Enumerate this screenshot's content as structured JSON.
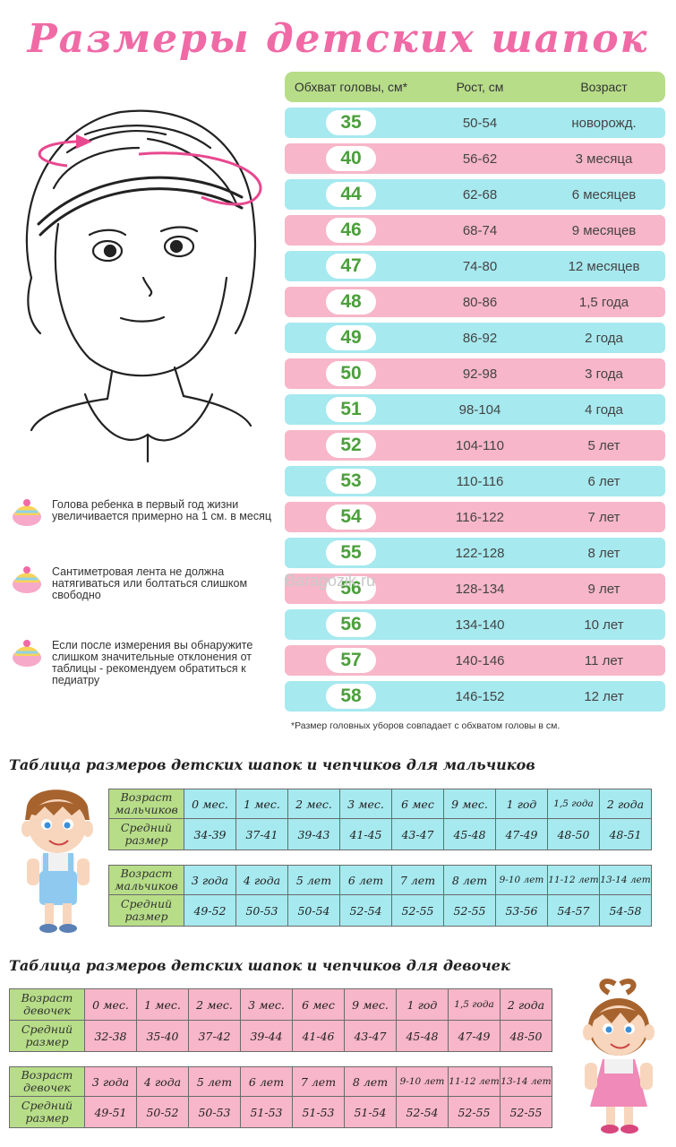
{
  "title": "Размеры детских шапок",
  "main_table": {
    "headers": {
      "head": "Обхват головы, см*",
      "height": "Рост, см",
      "age": "Возраст"
    },
    "rows": [
      {
        "size": "35",
        "height": "50-54",
        "age": "новорожд."
      },
      {
        "size": "40",
        "height": "56-62",
        "age": "3 месяца"
      },
      {
        "size": "44",
        "height": "62-68",
        "age": "6 месяцев"
      },
      {
        "size": "46",
        "height": "68-74",
        "age": "9 месяцев"
      },
      {
        "size": "47",
        "height": "74-80",
        "age": "12 месяцев"
      },
      {
        "size": "48",
        "height": "80-86",
        "age": "1,5 года"
      },
      {
        "size": "49",
        "height": "86-92",
        "age": "2 года"
      },
      {
        "size": "50",
        "height": "92-98",
        "age": "3 года"
      },
      {
        "size": "51",
        "height": "98-104",
        "age": "4 года"
      },
      {
        "size": "52",
        "height": "104-110",
        "age": "5 лет"
      },
      {
        "size": "53",
        "height": "110-116",
        "age": "6 лет"
      },
      {
        "size": "54",
        "height": "116-122",
        "age": "7 лет"
      },
      {
        "size": "55",
        "height": "122-128",
        "age": "8 лет"
      },
      {
        "size": "56",
        "height": "128-134",
        "age": "9 лет"
      },
      {
        "size": "56",
        "height": "134-140",
        "age": "10 лет"
      },
      {
        "size": "57",
        "height": "140-146",
        "age": "11 лет"
      },
      {
        "size": "58",
        "height": "146-152",
        "age": "12 лет"
      }
    ],
    "footnote": "*Размер головных уборов совпадает с обхватом головы в см."
  },
  "watermark": "Baragozik.ru",
  "tips": [
    "Голова ребенка в первый год жизни увеличивается примерно на 1 см. в месяц",
    "Сантиметровая лента не должна натягиваться или болтаться слишком свободно",
    "Если после измерения вы обнаружите слишком значительные отклонения от таблицы - рекомендуем обратиться к педиатру"
  ],
  "boys": {
    "title": "Таблица размеров детских шапок и чепчиков для мальчиков",
    "label_age": "Возраст мальчиков",
    "label_size": "Средний размер",
    "row1_ages": [
      "0 мес.",
      "1 мес.",
      "2 мес.",
      "3 мес.",
      "6 мес",
      "9 мес.",
      "1 год",
      "1,5 года",
      "2 года"
    ],
    "row1_sizes": [
      "34-39",
      "37-41",
      "39-43",
      "41-45",
      "43-47",
      "45-48",
      "47-49",
      "48-50",
      "48-51"
    ],
    "row2_ages": [
      "3 года",
      "4 года",
      "5 лет",
      "6 лет",
      "7 лет",
      "8 лет",
      "9-10 лет",
      "11-12 лет",
      "13-14 лет"
    ],
    "row2_sizes": [
      "49-52",
      "50-53",
      "50-54",
      "52-54",
      "52-55",
      "52-55",
      "53-56",
      "54-57",
      "54-58"
    ]
  },
  "girls": {
    "title": "Таблица размеров детских шапок и чепчиков для девочек",
    "label_age": "Возраст девочек",
    "label_size": "Средний размер",
    "row1_ages": [
      "0 мес.",
      "1 мес.",
      "2 мес.",
      "3 мес.",
      "6 мес",
      "9 мес.",
      "1 год",
      "1,5 года",
      "2 года"
    ],
    "row1_sizes": [
      "32-38",
      "35-40",
      "37-42",
      "39-44",
      "41-46",
      "43-47",
      "45-48",
      "47-49",
      "48-50"
    ],
    "row2_ages": [
      "3 года",
      "4 года",
      "5 лет",
      "6 лет",
      "7 лет",
      "8 лет",
      "9-10 лет",
      "11-12 лет",
      "13-14 лет"
    ],
    "row2_sizes": [
      "49-51",
      "50-52",
      "50-53",
      "51-53",
      "51-53",
      "51-54",
      "52-54",
      "52-55",
      "52-55"
    ]
  },
  "colors": {
    "title": "#f06aa6",
    "blue_row": "#a6e9ef",
    "pink_row": "#f7b6c9",
    "green_header": "#b7dd88",
    "size_text": "#4aa03a"
  }
}
